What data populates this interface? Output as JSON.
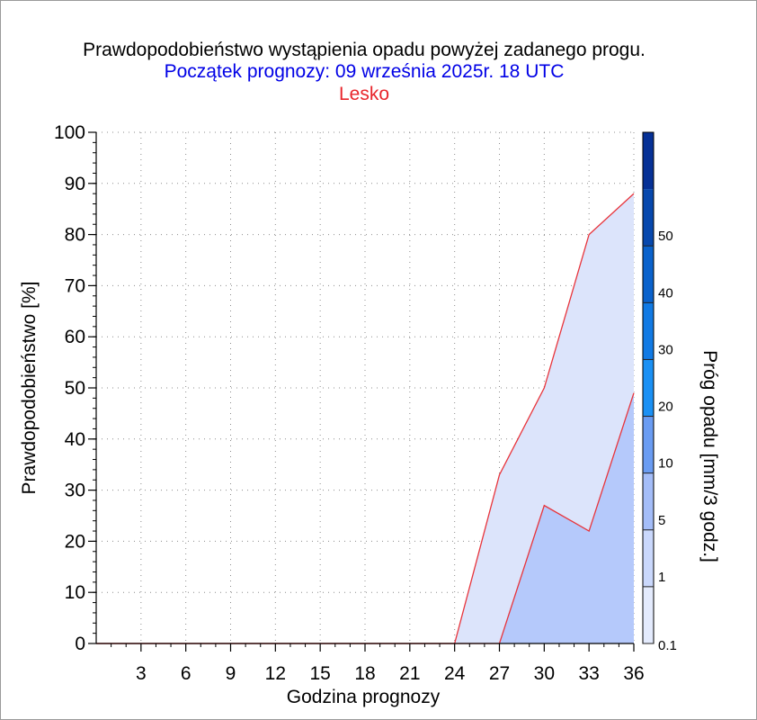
{
  "header": {
    "title": "Prawdopodobieństwo wystąpienia opadu powyżej zadanego progu.",
    "subtitle": "Początek prognozy: 09 września 2025r. 18 UTC",
    "location": "Lesko"
  },
  "chart_data": {
    "type": "area",
    "xlabel": "Godzina prognozy",
    "ylabel": "Prawdopodobieństwo [%]",
    "x": [
      0,
      3,
      6,
      9,
      12,
      15,
      18,
      21,
      24,
      27,
      30,
      33,
      36
    ],
    "xticks": [
      "3",
      "6",
      "9",
      "12",
      "15",
      "18",
      "21",
      "24",
      "27",
      "30",
      "33",
      "36"
    ],
    "yticks": [
      "0",
      "10",
      "20",
      "30",
      "40",
      "50",
      "60",
      "70",
      "80",
      "90",
      "100"
    ],
    "xlim": [
      0,
      36
    ],
    "ylim": [
      0,
      100
    ],
    "grid": true,
    "series": [
      {
        "name": "0.1",
        "color": "#dce4fb",
        "values": [
          0,
          0,
          0,
          0,
          0,
          0,
          0,
          0,
          0,
          33,
          50,
          80,
          88
        ]
      },
      {
        "name": "1",
        "color": "#b5c9fb",
        "values": [
          0,
          0,
          0,
          0,
          0,
          0,
          0,
          0,
          0,
          0,
          27,
          22,
          49
        ]
      }
    ],
    "colorbar": {
      "label": "Próg opadu [mm/3 godz.]",
      "levels": [
        "0.1",
        "1",
        "5",
        "10",
        "20",
        "30",
        "40",
        "50"
      ],
      "colors": [
        "#e4ebfd",
        "#cad8fc",
        "#a4bdf8",
        "#6a9cf2",
        "#1a90f4",
        "#117ae4",
        "#0a62cc",
        "#0748ad",
        "#063196"
      ]
    }
  }
}
